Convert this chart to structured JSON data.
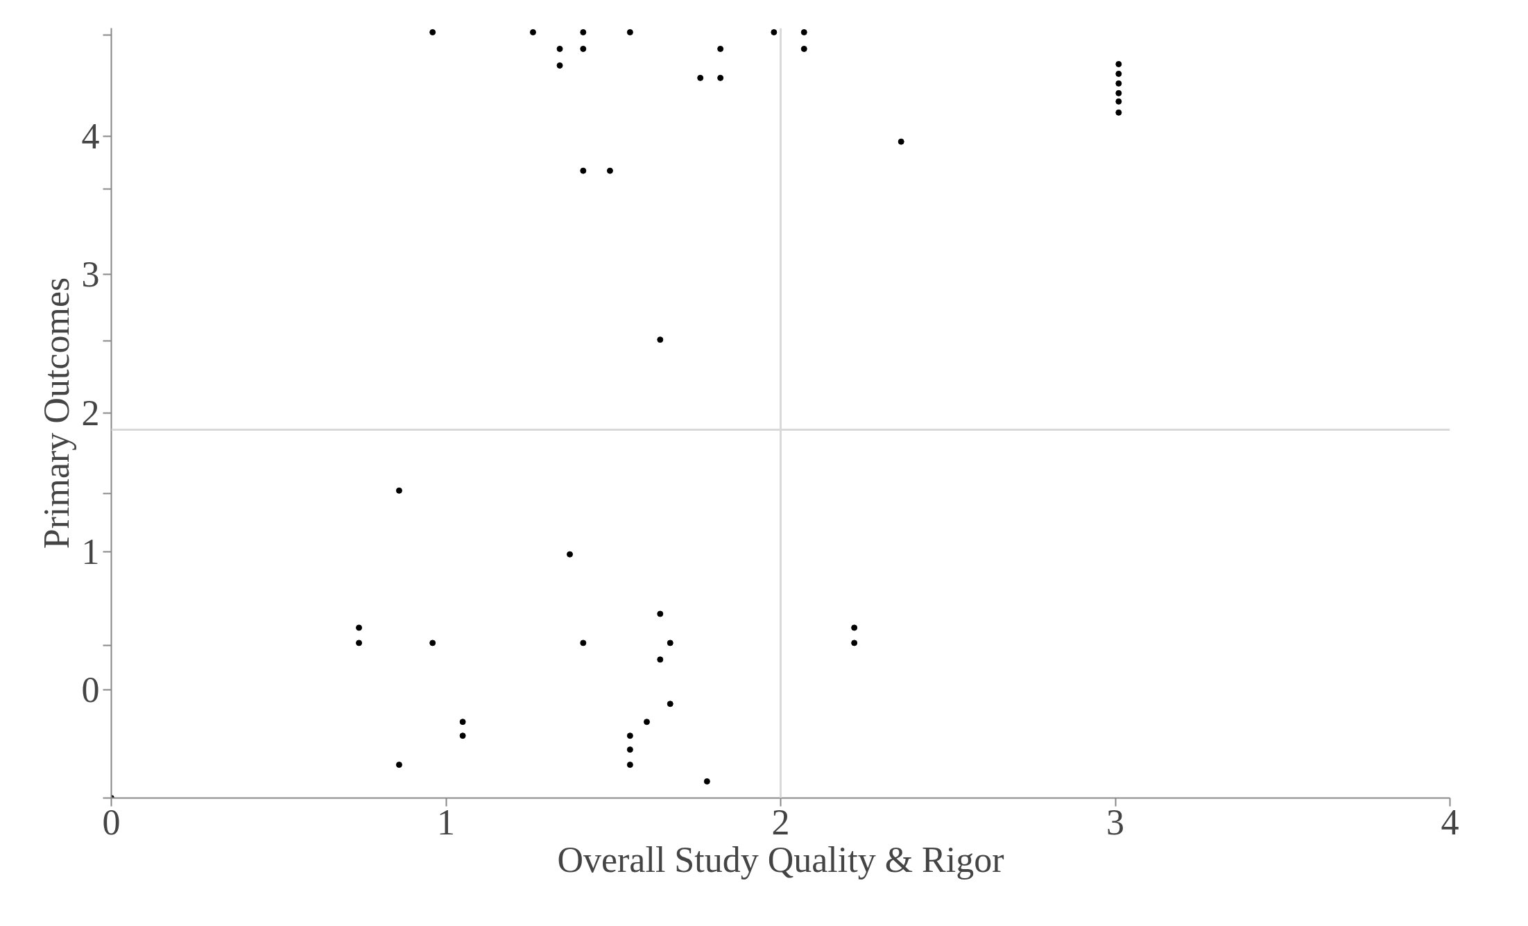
{
  "chart_data": {
    "type": "scatter",
    "xlabel": "Overall Study Quality & Rigor",
    "ylabel": "Primary Outcomes",
    "xlim": [
      0,
      4
    ],
    "xticks": [
      0,
      1,
      2,
      3,
      4
    ],
    "ylim": [
      -0.78,
      4.78
    ],
    "yticks": [
      {
        "value": -0.78,
        "label": null
      },
      {
        "value": 0.32,
        "label": null
      },
      {
        "value": 1.42,
        "label": null
      },
      {
        "value": 2.52,
        "label": null
      },
      {
        "value": 3.62,
        "label": null
      },
      {
        "value": 4.73,
        "label": null
      },
      0,
      1,
      2,
      3,
      4
    ],
    "grid": false,
    "marker": "circle",
    "ref_lines": [
      {
        "axis": "x",
        "value": 2,
        "color": "#d9d9d9"
      },
      {
        "axis": "y",
        "value": 1.88,
        "color": "#d9d9d9"
      }
    ],
    "series": [
      {
        "color": "#000000",
        "x": [
          0.96,
          1.26,
          1.41,
          1.41,
          1.55,
          1.34,
          1.34,
          1.98,
          2.07,
          2.07,
          1.82,
          1.76,
          1.82,
          3.01,
          3.01,
          3.01,
          3.01,
          3.01,
          3.01,
          2.36,
          1.41,
          1.49,
          1.64,
          0.86,
          1.37,
          1.64,
          0.74,
          0.74,
          0.96,
          1.41,
          1.67,
          1.64,
          2.22,
          2.22,
          1.67,
          1.6,
          1.05,
          1.05,
          1.55,
          1.55,
          1.55,
          0.86,
          1.78,
          0
        ],
        "values": [
          4.75,
          4.75,
          4.75,
          4.63,
          4.75,
          4.63,
          4.51,
          4.75,
          4.75,
          4.63,
          4.63,
          4.42,
          4.42,
          4.52,
          4.45,
          4.38,
          4.31,
          4.25,
          4.17,
          3.96,
          3.75,
          3.75,
          2.53,
          1.44,
          0.98,
          0.55,
          0.45,
          0.34,
          0.34,
          0.34,
          0.34,
          0.22,
          0.45,
          0.34,
          -0.1,
          -0.23,
          -0.23,
          -0.33,
          -0.33,
          -0.43,
          -0.54,
          -0.54,
          -0.66,
          -0.78
        ]
      }
    ]
  }
}
